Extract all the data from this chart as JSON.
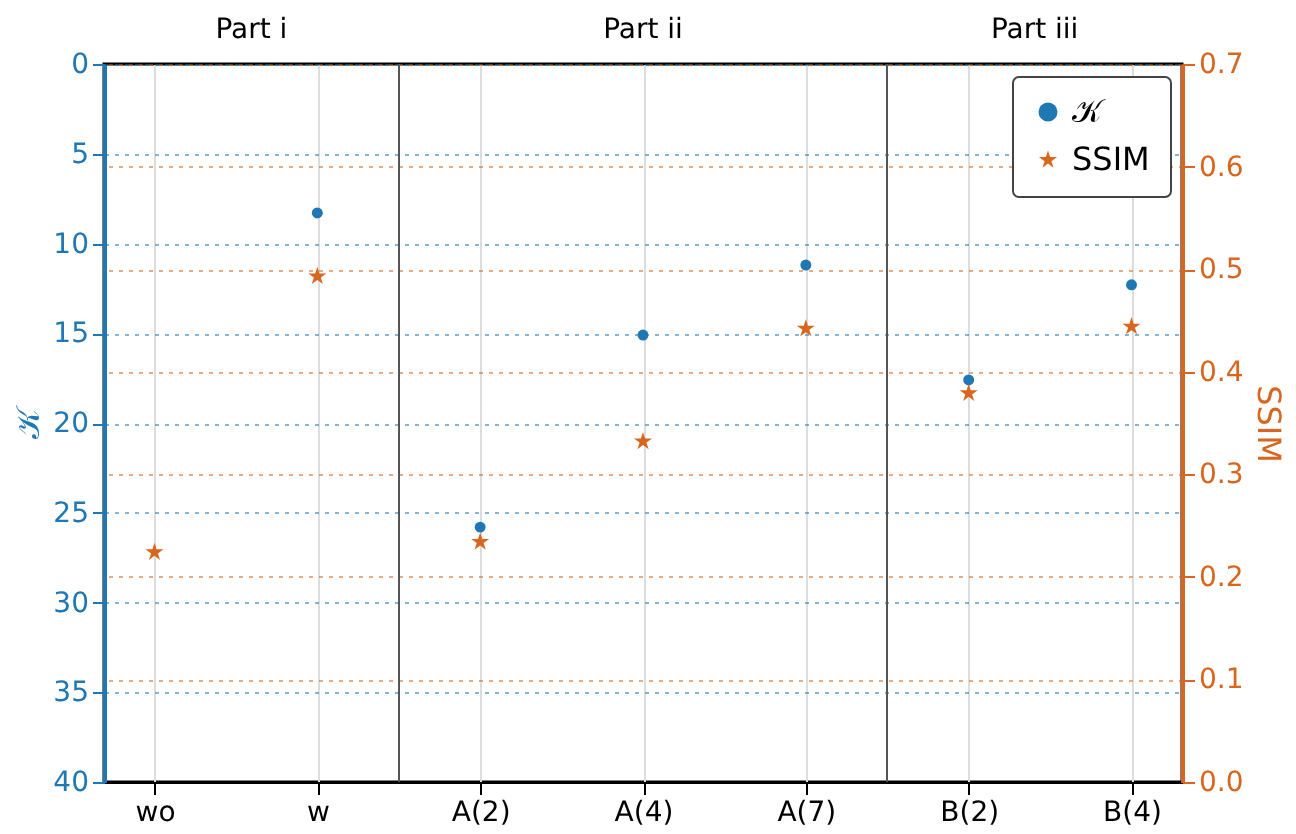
{
  "chart_data": {
    "type": "scatter",
    "ylabel": "𝒦",
    "y2label": "SSIM",
    "categories": [
      "wo",
      "w",
      "A(2)",
      "A(4)",
      "A(7)",
      "B(2)",
      "B(4)"
    ],
    "series": [
      {
        "name": "𝒦",
        "color": "#1f77b4",
        "marker": "circle",
        "values": [
          null,
          8.3,
          25.8,
          15.1,
          11.2,
          17.6,
          12.3
        ]
      },
      {
        "name": "SSIM",
        "color": "#d9661f",
        "marker": "star",
        "axis": "y2",
        "values": [
          0.224,
          0.493,
          0.234,
          0.332,
          0.442,
          0.379,
          0.444
        ]
      }
    ],
    "ylim": [
      40,
      0
    ],
    "yticks": [
      0,
      5,
      10,
      15,
      20,
      25,
      30,
      35,
      40
    ],
    "y2lim": [
      0,
      0.7
    ],
    "y2ticks": [
      {
        "value": 0,
        "label": "0.0"
      },
      {
        "value": 0.1,
        "label": "0.1"
      },
      {
        "value": 0.2,
        "label": "0.2"
      },
      {
        "value": 0.3,
        "label": "0.3"
      },
      {
        "value": 0.4,
        "label": "0.4"
      },
      {
        "value": 0.5,
        "label": "0.5"
      },
      {
        "value": 0.6,
        "label": "0.6"
      },
      {
        "value": 0.7,
        "label": "0.7"
      }
    ],
    "annotations": [
      "Part i",
      "Part ii",
      "Part iii"
    ],
    "grid": true,
    "legend": "top right"
  }
}
